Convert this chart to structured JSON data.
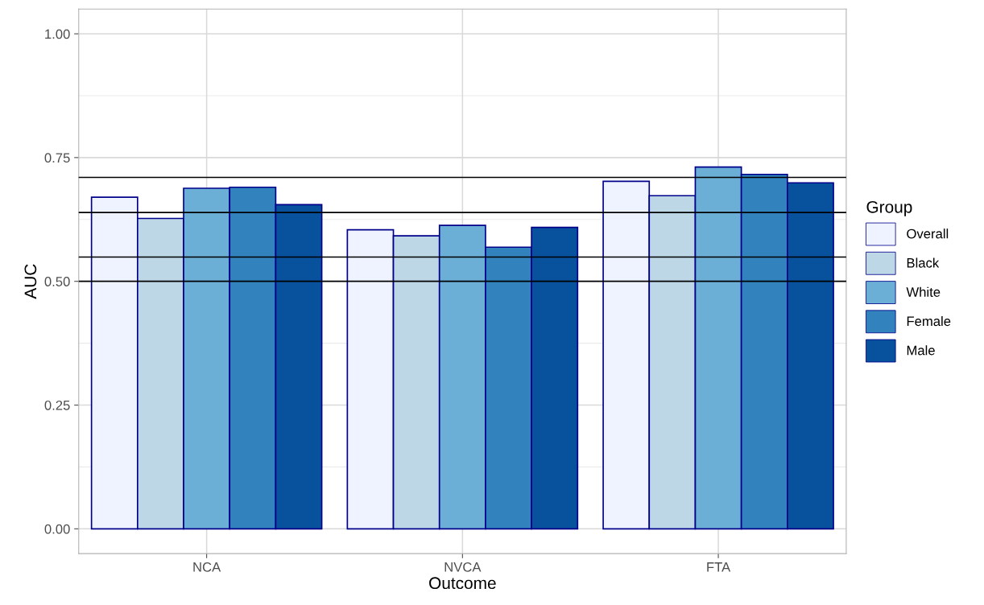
{
  "chart_data": {
    "type": "bar",
    "xlabel": "Outcome",
    "ylabel": "AUC",
    "legend_title": "Group",
    "categories": [
      "NCA",
      "NVCA",
      "FTA"
    ],
    "series": [
      {
        "name": "Overall",
        "color": "#eff3ff",
        "values": [
          0.67,
          0.604,
          0.702
        ]
      },
      {
        "name": "Black",
        "color": "#bdd7e7",
        "values": [
          0.627,
          0.592,
          0.673
        ]
      },
      {
        "name": "White",
        "color": "#6baed6",
        "values": [
          0.688,
          0.613,
          0.731
        ]
      },
      {
        "name": "Female",
        "color": "#3182bd",
        "values": [
          0.69,
          0.569,
          0.716
        ]
      },
      {
        "name": "Male",
        "color": "#08519c",
        "values": [
          0.655,
          0.609,
          0.699
        ]
      }
    ],
    "ylim": [
      -0.05,
      1.05
    ],
    "yticks": [
      {
        "value": 0,
        "label": "0.00"
      },
      {
        "value": 0.25,
        "label": "0.25"
      },
      {
        "value": 0.5,
        "label": "0.50"
      },
      {
        "value": 0.75,
        "label": "0.75"
      },
      {
        "value": 1,
        "label": "1.00"
      }
    ],
    "ref_lines": [
      {
        "axis": "y",
        "value": 0.71,
        "color": "#000000"
      },
      {
        "axis": "y",
        "value": 0.639,
        "color": "#000000"
      },
      {
        "axis": "y",
        "value": 0.549,
        "color": "#000000"
      },
      {
        "axis": "y",
        "value": 0.5,
        "color": "#000000"
      }
    ],
    "grid": true,
    "legend": "right"
  }
}
